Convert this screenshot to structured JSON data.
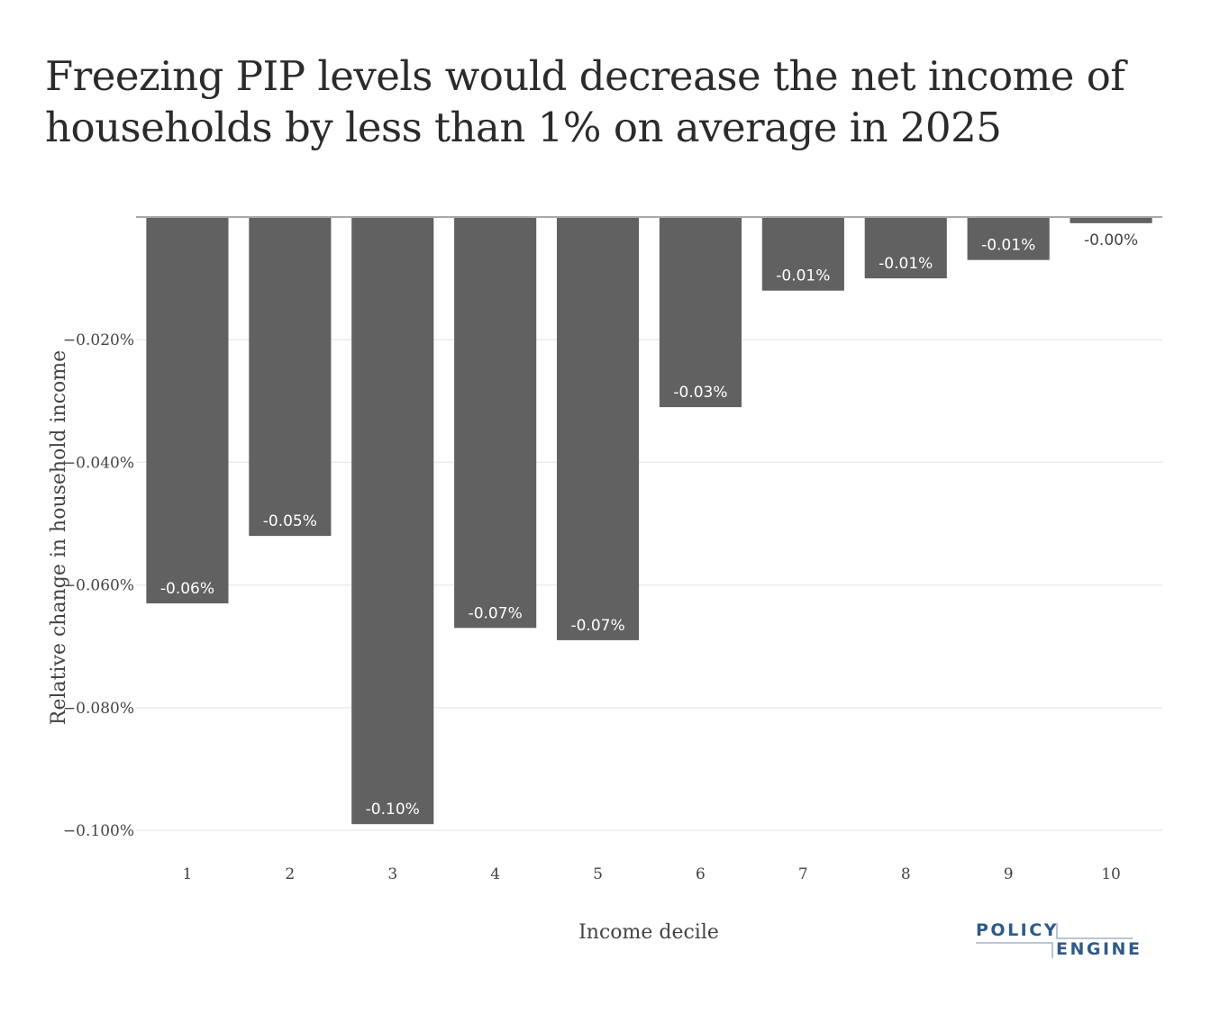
{
  "chart_data": {
    "type": "bar",
    "title": "Freezing PIP levels would decrease the net income of households by less than 1% on average in 2025",
    "xlabel": "Income decile",
    "ylabel": "Relative change in household income",
    "categories": [
      "1",
      "2",
      "3",
      "4",
      "5",
      "6",
      "7",
      "8",
      "9",
      "10"
    ],
    "values": [
      -0.063,
      -0.052,
      -0.099,
      -0.067,
      -0.069,
      -0.031,
      -0.012,
      -0.01,
      -0.007,
      -0.001
    ],
    "value_units": "percent",
    "data_labels": [
      "-0.06%",
      "-0.05%",
      "-0.10%",
      "-0.07%",
      "-0.07%",
      "-0.03%",
      "-0.01%",
      "-0.01%",
      "-0.01%",
      "-0.00%"
    ],
    "ylim": [
      -0.1,
      0
    ],
    "yticks": [
      -0.02,
      -0.04,
      -0.06,
      -0.08,
      -0.1
    ],
    "ytick_labels": [
      "−0.020%",
      "−0.040%",
      "−0.060%",
      "−0.080%",
      "−0.100%"
    ],
    "grid": true,
    "legend": "none",
    "bar_color": "#616161",
    "label_color_inside": "#ffffff",
    "label_color_outside": "#444444"
  },
  "branding": {
    "logo_word_1": "POLICY",
    "logo_word_2": "ENGINE",
    "logo_color": "#2f5a8a"
  }
}
